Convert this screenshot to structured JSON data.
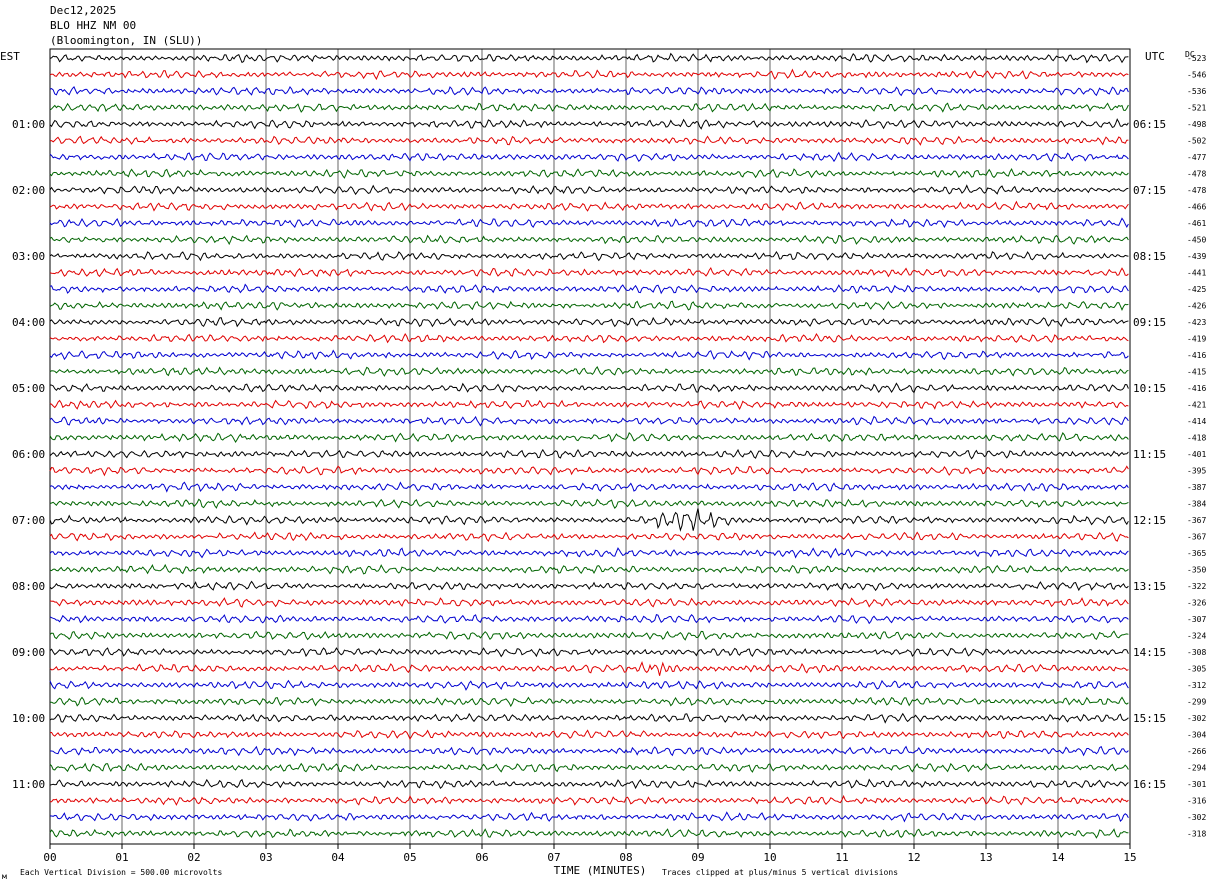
{
  "header": {
    "date": "Dec12,2025",
    "station": "BLO HHZ NM 00",
    "location": "(Bloomington, IN (SLU))"
  },
  "left_axis_title": "EST",
  "right_axis_title": "UTC",
  "dc_header": "DC",
  "footer": {
    "scale_note": "Each Vertical Division =  500.00 microvolts",
    "clip_note": "Traces clipped at plus/minus 5 vertical divisions",
    "mark": "м"
  },
  "colors": {
    "trace_cycle": [
      "#000000",
      "#e00000",
      "#0000d0",
      "#006400"
    ],
    "grid": "#000000"
  },
  "chart_data": {
    "type": "line",
    "title": "Dec12,2025 BLO HHZ NM 00 (Bloomington, IN (SLU))",
    "xlabel": "TIME (MINUTES)",
    "xlim": [
      0,
      15
    ],
    "xticks": [
      "00",
      "01",
      "02",
      "03",
      "04",
      "05",
      "06",
      "07",
      "08",
      "09",
      "10",
      "11",
      "12",
      "13",
      "14",
      "15"
    ],
    "rows_per_hour": 4,
    "row_count": 48,
    "est_hour_labels": [
      "01:00",
      "02:00",
      "03:00",
      "04:00",
      "05:00",
      "06:00",
      "07:00",
      "08:00",
      "09:00",
      "10:00",
      "11:00"
    ],
    "utc_hour_labels": [
      "06:15",
      "07:15",
      "08:15",
      "09:15",
      "10:15",
      "11:15",
      "12:15",
      "13:15",
      "14:15",
      "15:15",
      "16:15"
    ],
    "dc_offsets": [
      "-523",
      "-546",
      "-536",
      "-521",
      "-498",
      "-502",
      "-477",
      "-478",
      "-478",
      "-466",
      "-461",
      "-450",
      "-439",
      "-441",
      "-425",
      "-426",
      "-423",
      "-419",
      "-416",
      "-415",
      "-416",
      "-421",
      "-414",
      "-418",
      "-401",
      "-395",
      "-387",
      "-384",
      "-367",
      "-367",
      "-365",
      "-350",
      "-322",
      "-326",
      "-307",
      "-324",
      "-308",
      "-305",
      "-312",
      "-299",
      "-302",
      "-304",
      "-266",
      "-294",
      "-301",
      "-316",
      "-302",
      "-318"
    ],
    "events": [
      {
        "row": 28,
        "start_min": 8.4,
        "end_min": 9.9,
        "amplitude": "large",
        "description_label": ""
      },
      {
        "row": 37,
        "start_min": 8.2,
        "end_min": 8.9,
        "amplitude": "medium",
        "description_label": ""
      }
    ],
    "grid": true
  }
}
